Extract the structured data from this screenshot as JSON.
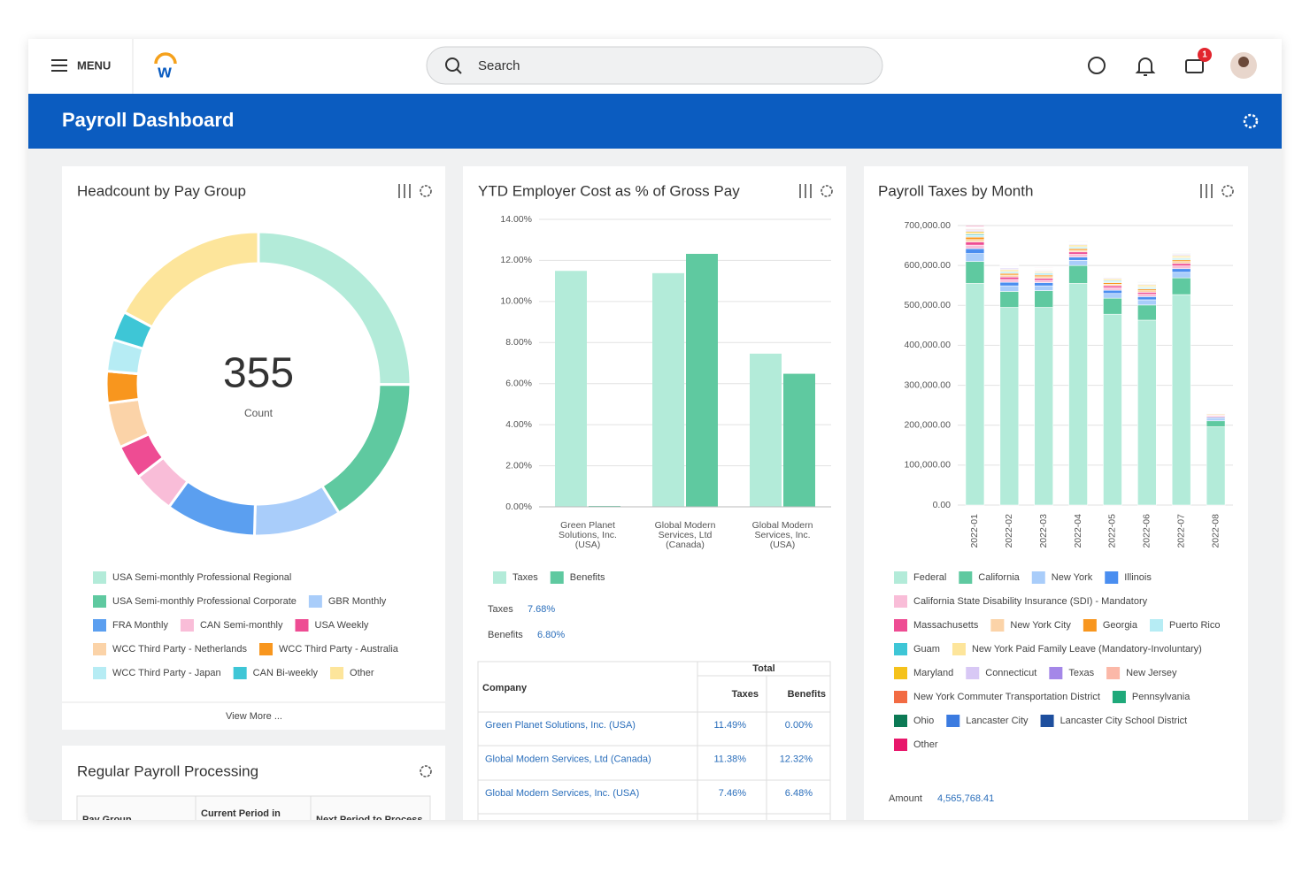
{
  "header": {
    "menu": "MENU",
    "search_placeholder": "Search",
    "notification_count": "1",
    "banner_title": "Payroll Dashboard"
  },
  "chart_data": [
    {
      "type": "donut",
      "title": "Headcount by Pay Group",
      "total": 355,
      "center_label": "Count",
      "footer_link": "View More ...",
      "categories": [
        "USA Semi-monthly Professional Regional",
        "USA Semi-monthly Professional Corporate",
        "GBR Monthly",
        "FRA Monthly",
        "CAN Semi-monthly",
        "USA Weekly",
        "WCC Third Party - Netherlands",
        "WCC Third Party - Australia",
        "WCC Third Party - Japan",
        "CAN Bi-weekly",
        "Other"
      ],
      "values": [
        89,
        57,
        33,
        34,
        16,
        13,
        17,
        12,
        12,
        11,
        61
      ],
      "colors": [
        "#b3ebd9",
        "#5fc9a0",
        "#a9cdfa",
        "#5b9ff0",
        "#f9bdd8",
        "#ee4c93",
        "#fbd3a8",
        "#f8961e",
        "#b6ecf4",
        "#3ec6d6",
        "#fde59b"
      ]
    },
    {
      "type": "bar",
      "title": "YTD Employer Cost as % of Gross Pay",
      "categories": [
        [
          "Green Planet",
          "Solutions, Inc.",
          "(USA)"
        ],
        [
          "Global Modern",
          "Services, Ltd",
          "(Canada)"
        ],
        [
          "Global Modern",
          "Services, Inc.",
          "(USA)"
        ]
      ],
      "series": [
        {
          "name": "Taxes",
          "color": "#b3ebd9",
          "values": [
            11.49,
            11.38,
            7.46
          ]
        },
        {
          "name": "Benefits",
          "color": "#5fc9a0",
          "values": [
            0.0,
            12.32,
            6.48
          ]
        }
      ],
      "ylim": [
        0,
        14
      ],
      "yticks": [
        {
          "value": 0,
          "label": "0.00%"
        },
        {
          "value": 2,
          "label": "2.00%"
        },
        {
          "value": 4,
          "label": "4.00%"
        },
        {
          "value": 6,
          "label": "6.00%"
        },
        {
          "value": 8,
          "label": "8.00%"
        },
        {
          "value": 10,
          "label": "10.00%"
        },
        {
          "value": 12,
          "label": "12.00%"
        },
        {
          "value": 14,
          "label": "14.00%"
        }
      ],
      "grid": true,
      "summary": [
        {
          "label": "Taxes",
          "value": "7.68%"
        },
        {
          "label": "Benefits",
          "value": "6.80%"
        }
      ],
      "table": {
        "group_header": "Total",
        "columns": [
          "Company",
          "Taxes",
          "Benefits"
        ],
        "rows": [
          [
            "Green Planet Solutions, Inc. (USA)",
            "11.49%",
            "0.00%"
          ],
          [
            "Global Modern Services, Ltd (Canada)",
            "11.38%",
            "12.32%"
          ],
          [
            "Global Modern Services, Inc. (USA)",
            "7.46%",
            "6.48%"
          ]
        ]
      }
    },
    {
      "type": "stacked-bar",
      "title": "Payroll Taxes by Month",
      "categories": [
        "2022-01",
        "2022-02",
        "2022-03",
        "2022-04",
        "2022-05",
        "2022-06",
        "2022-07",
        "2022-08"
      ],
      "series": [
        {
          "name": "Federal",
          "color": "#b3ebd9",
          "values": [
            555000,
            495000,
            495000,
            555000,
            478000,
            463000,
            527000,
            196000
          ]
        },
        {
          "name": "California",
          "color": "#5fc9a0",
          "values": [
            55000,
            40000,
            42000,
            45000,
            40000,
            38000,
            42000,
            15000
          ]
        },
        {
          "name": "New York",
          "color": "#a9cdfa",
          "values": [
            20000,
            14000,
            12000,
            13000,
            12000,
            13000,
            14000,
            5000
          ]
        },
        {
          "name": "Illinois",
          "color": "#4a8ef0",
          "values": [
            12000,
            9000,
            8000,
            8000,
            8000,
            8000,
            9000,
            3000
          ]
        },
        {
          "name": "California State Disability Insurance (SDI) - Mandatory",
          "color": "#f9bdd8",
          "values": [
            9000,
            7000,
            6000,
            7000,
            6000,
            6000,
            7000,
            3000
          ]
        },
        {
          "name": "Massachusetts",
          "color": "#ee4c93",
          "values": [
            8000,
            6000,
            5000,
            6000,
            5000,
            5000,
            6000,
            2000
          ]
        },
        {
          "name": "New York City",
          "color": "#fbd3a8",
          "values": [
            6000,
            5000,
            4000,
            4000,
            4000,
            4000,
            5000,
            2000
          ]
        },
        {
          "name": "Georgia",
          "color": "#f8961e",
          "values": [
            6000,
            4000,
            4000,
            4000,
            4000,
            4000,
            4000,
            2000
          ]
        },
        {
          "name": "Puerto Rico",
          "color": "#b6ecf4",
          "values": [
            4000,
            3000,
            3000,
            3000,
            3000,
            3000,
            3000,
            1000
          ]
        },
        {
          "name": "Guam",
          "color": "#3ec6d6",
          "values": [
            3000,
            2000,
            2000,
            2000,
            2000,
            2000,
            2000,
            1000
          ]
        },
        {
          "name": "New York Paid Family Leave (Mandatory-Involuntary)",
          "color": "#fde59b",
          "values": [
            4000,
            3000,
            2000,
            3000,
            3000,
            3000,
            3000,
            1000
          ]
        },
        {
          "name": "Maryland",
          "color": "#f5c21b",
          "values": [
            3000,
            2000,
            2000,
            2000,
            2000,
            2000,
            2000,
            1000
          ]
        },
        {
          "name": "Connecticut",
          "color": "#d8c8f5",
          "values": [
            3000,
            2000,
            2000,
            2000,
            2000,
            2000,
            2000,
            1000
          ]
        },
        {
          "name": "Texas",
          "color": "#a487e8",
          "values": [
            2000,
            2000,
            1000,
            1000,
            1000,
            1000,
            2000,
            500
          ]
        },
        {
          "name": "New Jersey",
          "color": "#fbb8a8",
          "values": [
            2000,
            1000,
            1000,
            1000,
            1000,
            1000,
            1000,
            500
          ]
        },
        {
          "name": "New York Commuter Transportation District",
          "color": "#f26b43",
          "values": [
            1000,
            1000,
            1000,
            1000,
            1000,
            1000,
            1000,
            500
          ]
        },
        {
          "name": "Pennsylvania",
          "color": "#1fa97a",
          "values": [
            1000,
            1000,
            1000,
            1000,
            1000,
            1000,
            1000,
            500
          ]
        },
        {
          "name": "Ohio",
          "color": "#0c7a55",
          "values": [
            1000,
            1000,
            1000,
            1000,
            1000,
            1000,
            1000,
            500
          ]
        },
        {
          "name": "Lancaster City",
          "color": "#3b7be0",
          "values": [
            1000,
            1000,
            1000,
            1000,
            1000,
            1000,
            1000,
            500
          ]
        },
        {
          "name": "Lancaster City School District",
          "color": "#1e4f9e",
          "values": [
            1000,
            1000,
            1000,
            1000,
            1000,
            1000,
            1000,
            500
          ]
        },
        {
          "name": "Other",
          "color": "#e8176b",
          "values": [
            2000,
            1000,
            1000,
            1000,
            1000,
            1000,
            1000,
            500
          ]
        }
      ],
      "ylim": [
        0,
        700000
      ],
      "yticks": [
        {
          "value": 0,
          "label": "0.00"
        },
        {
          "value": 100000,
          "label": "100,000.00"
        },
        {
          "value": 200000,
          "label": "200,000.00"
        },
        {
          "value": 300000,
          "label": "300,000.00"
        },
        {
          "value": 400000,
          "label": "400,000.00"
        },
        {
          "value": 500000,
          "label": "500,000.00"
        },
        {
          "value": 600000,
          "label": "600,000.00"
        },
        {
          "value": 700000,
          "label": "700,000.00"
        }
      ],
      "grid": true,
      "summary": {
        "label": "Amount",
        "value": "4,565,768.41"
      }
    }
  ],
  "payroll_processing": {
    "title": "Regular Payroll Processing",
    "columns": [
      "Pay Group",
      "Current Period in",
      "Next Period to Process"
    ]
  }
}
